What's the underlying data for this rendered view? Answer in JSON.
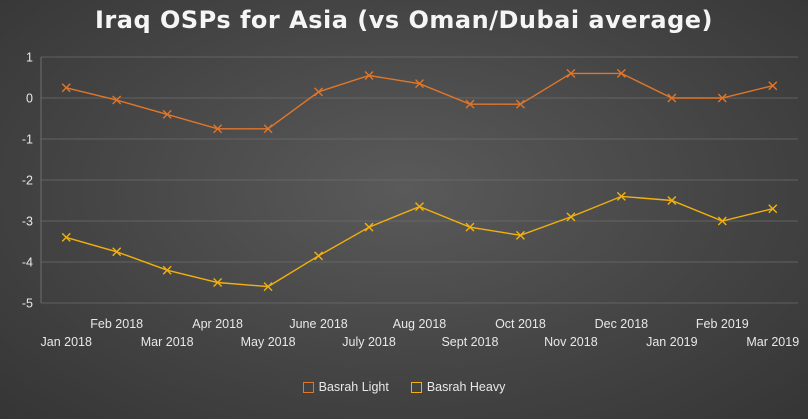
{
  "chart_data": {
    "type": "line",
    "title": "Iraq OSPs for Asia (vs Oman/Dubai average)",
    "xlabel": "",
    "ylabel": "",
    "ylim": [
      -5,
      1
    ],
    "yticks": [
      1,
      0,
      -1,
      -2,
      -3,
      -4,
      -5
    ],
    "categories": [
      "Jan 2018",
      "Feb 2018",
      "Mar 2018",
      "Apr 2018",
      "May 2018",
      "June 2018",
      "July 2018",
      "Aug 2018",
      "Sept 2018",
      "Oct 2018",
      "Nov 2018",
      "Dec 2018",
      "Jan 2019",
      "Feb 2019",
      "Mar 2019"
    ],
    "series": [
      {
        "name": "Basrah Light",
        "color": "#e0762a",
        "values": [
          0.25,
          -0.05,
          -0.4,
          -0.75,
          -0.75,
          0.15,
          0.55,
          0.35,
          -0.15,
          -0.15,
          0.6,
          0.6,
          0.0,
          0.0,
          0.3
        ]
      },
      {
        "name": "Basrah Heavy",
        "color": "#f2b10c",
        "values": [
          -3.4,
          -3.75,
          -4.2,
          -4.5,
          -4.6,
          -3.85,
          -3.15,
          -2.65,
          -3.15,
          -3.35,
          -2.9,
          -2.4,
          -2.5,
          -3.0,
          -2.7
        ]
      }
    ],
    "legend_position": "bottom",
    "grid": true
  }
}
